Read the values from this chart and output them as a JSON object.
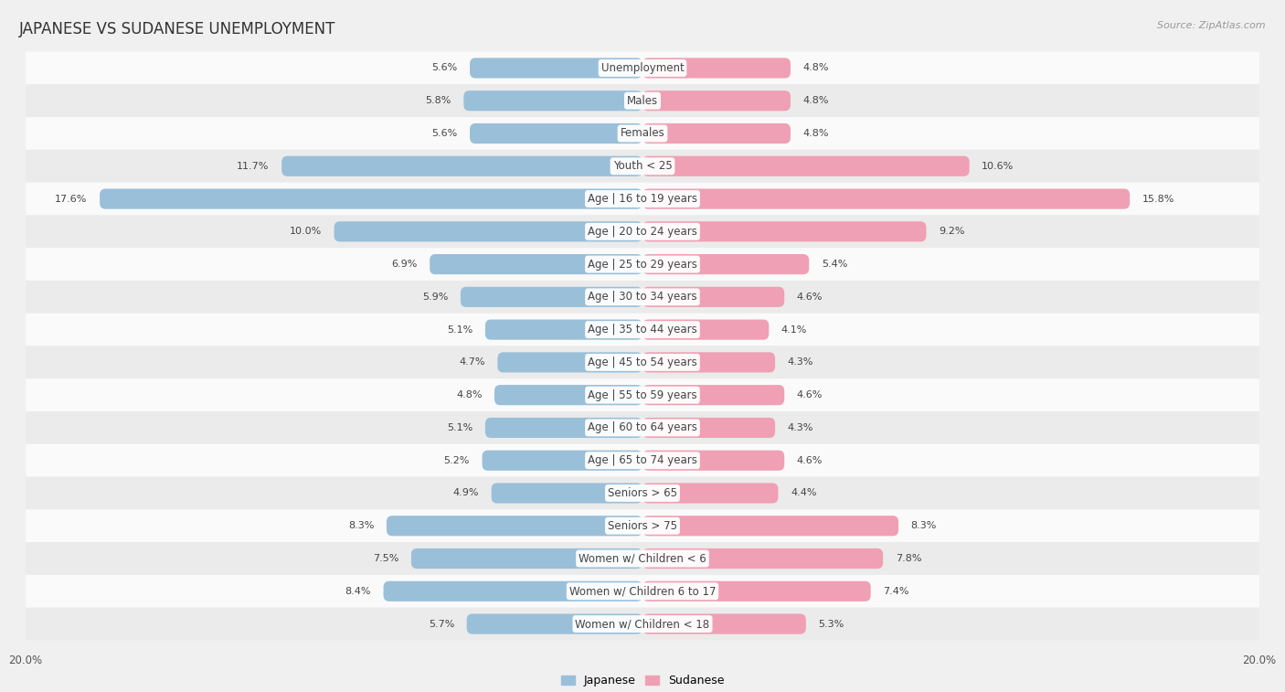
{
  "title": "JAPANESE VS SUDANESE UNEMPLOYMENT",
  "source": "Source: ZipAtlas.com",
  "categories": [
    "Unemployment",
    "Males",
    "Females",
    "Youth < 25",
    "Age | 16 to 19 years",
    "Age | 20 to 24 years",
    "Age | 25 to 29 years",
    "Age | 30 to 34 years",
    "Age | 35 to 44 years",
    "Age | 45 to 54 years",
    "Age | 55 to 59 years",
    "Age | 60 to 64 years",
    "Age | 65 to 74 years",
    "Seniors > 65",
    "Seniors > 75",
    "Women w/ Children < 6",
    "Women w/ Children 6 to 17",
    "Women w/ Children < 18"
  ],
  "japanese": [
    5.6,
    5.8,
    5.6,
    11.7,
    17.6,
    10.0,
    6.9,
    5.9,
    5.1,
    4.7,
    4.8,
    5.1,
    5.2,
    4.9,
    8.3,
    7.5,
    8.4,
    5.7
  ],
  "sudanese": [
    4.8,
    4.8,
    4.8,
    10.6,
    15.8,
    9.2,
    5.4,
    4.6,
    4.1,
    4.3,
    4.6,
    4.3,
    4.6,
    4.4,
    8.3,
    7.8,
    7.4,
    5.3
  ],
  "japanese_color": "#9abfd9",
  "sudanese_color": "#f0a0b4",
  "japanese_label": "Japanese",
  "sudanese_label": "Sudanese",
  "axis_max": 20.0,
  "bg_color": "#f0f0f0",
  "row_light": "#fafafa",
  "row_dark": "#ebebeb",
  "title_fontsize": 12,
  "label_fontsize": 8.5,
  "value_fontsize": 8,
  "legend_fontsize": 9,
  "source_fontsize": 8
}
